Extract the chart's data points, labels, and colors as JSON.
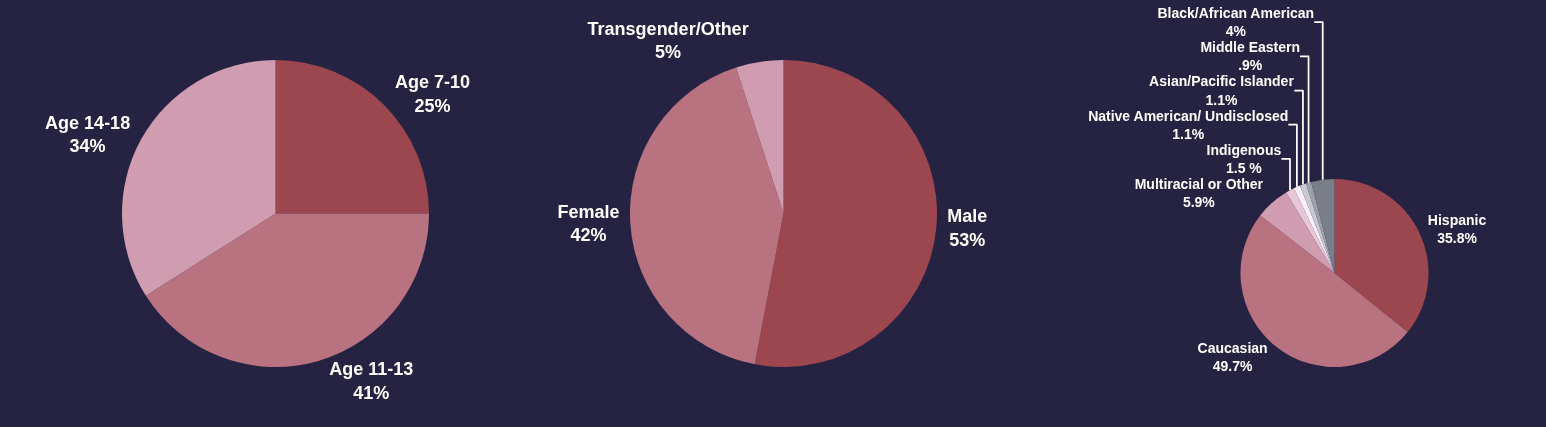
{
  "chart_data": [
    {
      "type": "pie",
      "categories": [
        "Age 7-10",
        "Age 11-13",
        "Age 14-18"
      ],
      "values": [
        25,
        41,
        34
      ],
      "value_labels": [
        "25%",
        "41%",
        "34%"
      ],
      "colors": [
        "#9c4650",
        "#b87280",
        "#d09caf"
      ],
      "legend": false
    },
    {
      "type": "pie",
      "categories": [
        "Male",
        "Female",
        "Transgender/Other"
      ],
      "values": [
        53,
        42,
        5
      ],
      "value_labels": [
        "53%",
        "42%",
        "5%"
      ],
      "colors": [
        "#9c4650",
        "#b87280",
        "#d09caf"
      ],
      "legend": false
    },
    {
      "type": "pie",
      "categories": [
        "Hispanic",
        "Caucasian",
        "Multiracial or Other",
        "Indigenous",
        "Native American/ Undisclosed",
        "Asian/Pacific Islander",
        "Middle Eastern",
        "Black/African American"
      ],
      "values": [
        35.8,
        49.7,
        5.9,
        1.5,
        1.1,
        1.1,
        0.9,
        4
      ],
      "value_labels": [
        "35.8%",
        "49.7%",
        "5.9%",
        "1.5 %",
        "1.1%",
        "1.1%",
        ".9%",
        "4%"
      ],
      "colors": [
        "#9c4650",
        "#b87280",
        "#d09caf",
        "#e8c6d6",
        "#fbf0fb",
        "#c8c8d0",
        "#a0a0a8",
        "#7a7e88"
      ],
      "legend": false
    }
  ]
}
